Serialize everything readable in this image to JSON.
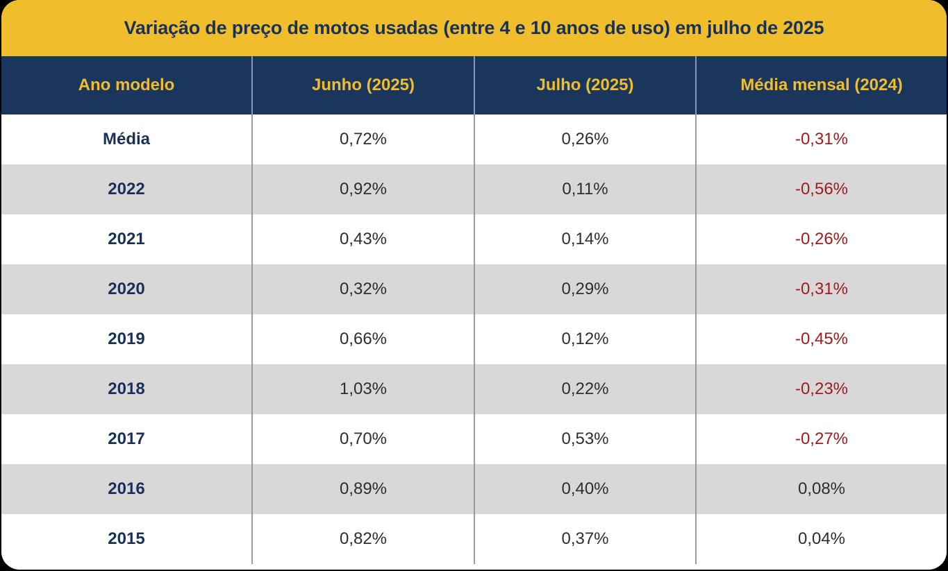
{
  "chart_data": {
    "type": "table",
    "title": "Variação de preço de motos usadas (entre 4 e 10 anos de uso) em julho de 2025",
    "columns": [
      "Ano modelo",
      "Junho (2025)",
      "Julho (2025)",
      "Média mensal (2024)"
    ],
    "rows": [
      [
        "Média",
        "0,72%",
        "0,26%",
        "-0,31%"
      ],
      [
        "2022",
        "0,92%",
        "0,11%",
        "-0,56%"
      ],
      [
        "2021",
        "0,43%",
        "0,14%",
        "-0,26%"
      ],
      [
        "2020",
        "0,32%",
        "0,29%",
        "-0,31%"
      ],
      [
        "2019",
        "0,66%",
        "0,12%",
        "-0,45%"
      ],
      [
        "2018",
        "1,03%",
        "0,22%",
        "-0,23%"
      ],
      [
        "2017",
        "0,70%",
        "0,53%",
        "-0,27%"
      ],
      [
        "2016",
        "0,89%",
        "0,40%",
        "0,08%"
      ],
      [
        "2015",
        "0,82%",
        "0,37%",
        "0,04%"
      ]
    ]
  },
  "colors": {
    "title_background": "#f0bd2c",
    "title_text": "#1a3157",
    "header_background": "#1a365c",
    "header_text": "#f0bd2c",
    "stripe": "#d9d7d8",
    "negative_value": "#9b1c1c"
  }
}
